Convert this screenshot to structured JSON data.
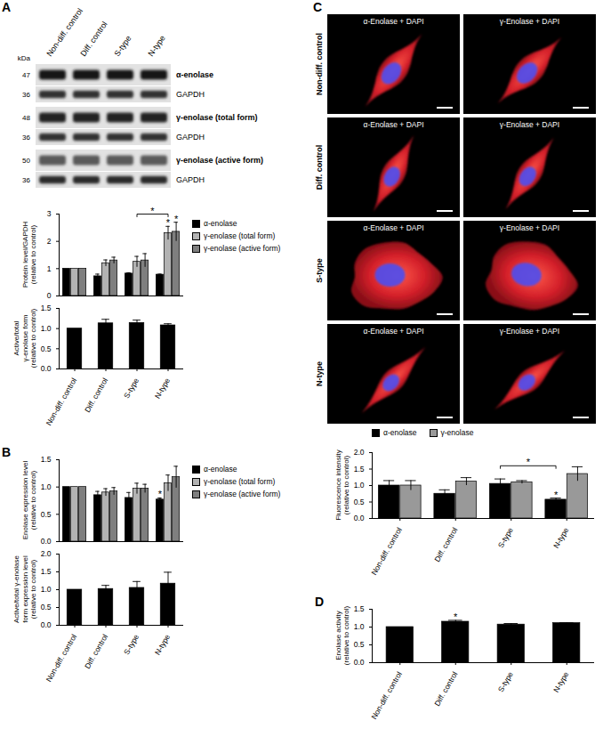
{
  "blot": {
    "panel": "A",
    "lanes": [
      "Non-diff. control",
      "Diff. control",
      "S-type",
      "N-type"
    ],
    "unit": "kDa",
    "rows": [
      {
        "kda": 47,
        "label": "α-enolase"
      },
      {
        "kda": 36,
        "label": "GAPDH"
      },
      {
        "kda": 48,
        "label": "γ-enolase (total form)"
      },
      {
        "kda": 36,
        "label": "GAPDH"
      },
      {
        "kda": 50,
        "label": "γ-enolase (active form)"
      },
      {
        "kda": 36,
        "label": "GAPDH"
      }
    ]
  },
  "images": {
    "panel": "C",
    "columns": [
      "α-Enolase + DAPI",
      "γ-Enolase + DAPI"
    ],
    "rows": [
      "Non-diff. control",
      "Diff. control",
      "S-type",
      "N-type"
    ]
  },
  "chart_data": [
    {
      "type": "bar",
      "y_label": "Protein level/GAPDH (relative to control)",
      "categories": [
        "Non-diff. control",
        "Diff. control",
        "S-type",
        "N-type"
      ],
      "series": [
        {
          "name": "α-enolase",
          "color": "#000000",
          "values": [
            1,
            0.72,
            0.82,
            0.78
          ],
          "errors": [
            0,
            0.08,
            0.03,
            0.02
          ]
        },
        {
          "name": "γ-enolase (total form)",
          "color": "#b3b3b3",
          "values": [
            1,
            1.2,
            1.25,
            2.3
          ],
          "errors": [
            0,
            0.12,
            0.2,
            0.25
          ]
        },
        {
          "name": "γ-enolase (active form)",
          "color": "#7f7f7f",
          "values": [
            1,
            1.3,
            1.3,
            2.35
          ],
          "errors": [
            0,
            0.12,
            0.25,
            0.35
          ]
        }
      ],
      "ylim": [
        0,
        3
      ],
      "yticks": [
        0,
        1,
        2,
        3
      ],
      "tick_labels": "y",
      "legend": "right",
      "annotations": [
        {
          "category": "N-type",
          "series": "γ-enolase (total form)",
          "text": "*"
        },
        {
          "category": "N-type",
          "series": "γ-enolase (active form)",
          "text": "*"
        }
      ],
      "brackets": [
        {
          "from": {
            "category": "S-type",
            "series": "γ-enolase (total form)"
          },
          "to": {
            "category": "N-type",
            "series": "γ-enolase (total form)"
          },
          "y": 3,
          "text": "*"
        }
      ]
    },
    {
      "type": "bar",
      "y_label": "Active/total γ-enolase form (relative to control)",
      "categories": [
        "Non-diff. control",
        "Diff. control",
        "S-type",
        "N-type"
      ],
      "color": "#000000",
      "values": [
        1,
        1.13,
        1.14,
        1.08
      ],
      "errors": [
        0,
        0.1,
        0.07,
        0.04
      ],
      "ylim": [
        0,
        1.5
      ],
      "yticks": [
        {
          "value": 0,
          "label": "0.0"
        },
        {
          "value": 0.5,
          "label": "0.5"
        },
        {
          "value": 1,
          "label": "1.0"
        },
        {
          "value": 1.5,
          "label": "1.5"
        }
      ]
    },
    {
      "panel": "B",
      "type": "bar",
      "y_label": "Enolase expression level (relative to control)",
      "categories": [
        "Non-diff. control",
        "Diff. control",
        "S-type",
        "N-type"
      ],
      "series": [
        {
          "name": "α-enolase",
          "color": "#000000",
          "values": [
            1,
            0.85,
            0.8,
            0.77
          ],
          "errors": [
            0,
            0.07,
            0.1,
            0.03
          ]
        },
        {
          "name": "γ-enolase (total form)",
          "color": "#b3b3b3",
          "values": [
            1,
            0.9,
            0.97,
            1.07
          ],
          "errors": [
            0,
            0.07,
            0.1,
            0.15
          ]
        },
        {
          "name": "γ-enolase (active form)",
          "color": "#7f7f7f",
          "values": [
            1,
            0.92,
            0.97,
            1.18
          ],
          "errors": [
            0,
            0.07,
            0.08,
            0.2
          ]
        }
      ],
      "ylim": [
        0,
        1.5
      ],
      "yticks": [
        {
          "value": 0,
          "label": "0.0"
        },
        {
          "value": 0.5,
          "label": "0.5"
        },
        {
          "value": 1,
          "label": "1.0"
        },
        {
          "value": 1.5,
          "label": "1.5"
        }
      ],
      "tick_labels": "y",
      "legend": "right",
      "annotations": [
        {
          "category": "N-type",
          "series": "α-enolase",
          "text": "*"
        }
      ]
    },
    {
      "type": "bar",
      "y_label": "Active/total γ-enolase form expression level (relative to control)",
      "categories": [
        "Non-diff. control",
        "Diff. control",
        "S-type",
        "N-type"
      ],
      "color": "#000000",
      "values": [
        1,
        1.02,
        1.05,
        1.17
      ],
      "errors": [
        0,
        0.1,
        0.18,
        0.32
      ],
      "ylim": [
        0,
        2
      ],
      "yticks": [
        {
          "value": 0,
          "label": "0.0"
        },
        {
          "value": 0.5,
          "label": "0.5"
        },
        {
          "value": 1,
          "label": "1.0"
        },
        {
          "value": 1.5,
          "label": "1.5"
        },
        {
          "value": 2,
          "label": "2.0"
        }
      ]
    },
    {
      "type": "bar",
      "y_label": "Fluorescence intensity (relative to control)",
      "categories": [
        "Non-diff. control",
        "Diff. control",
        "S-type",
        "N-type"
      ],
      "series": [
        {
          "name": "α-enolase",
          "color": "#000000",
          "values": [
            1,
            0.75,
            1.05,
            0.57
          ],
          "errors": [
            0.15,
            0.12,
            0.15,
            0.05
          ]
        },
        {
          "name": "γ-enolase",
          "color": "#999999",
          "values": [
            1,
            1.12,
            1.1,
            1.35
          ],
          "errors": [
            0.15,
            0.12,
            0.05,
            0.22
          ]
        }
      ],
      "ylim": [
        0,
        2
      ],
      "yticks": [
        {
          "value": 0,
          "label": "0.0"
        },
        {
          "value": 0.5,
          "label": "0.5"
        },
        {
          "value": 1,
          "label": "1.0"
        },
        {
          "value": 1.5,
          "label": "1.5"
        },
        {
          "value": 2,
          "label": "2.0"
        }
      ],
      "legend": "top",
      "annotations": [
        {
          "category": "N-type",
          "series": "α-enolase",
          "text": "*"
        }
      ],
      "brackets": [
        {
          "from": {
            "category": "S-type",
            "series": "α-enolase"
          },
          "to": {
            "category": "N-type",
            "series": "α-enolase"
          },
          "y": 1.6,
          "text": "*"
        }
      ]
    },
    {
      "panel": "D",
      "type": "bar",
      "y_label": "Enolase activity (relative to control)",
      "categories": [
        "Non-diff. control",
        "Diff. control",
        "S-type",
        "N-type"
      ],
      "color": "#000000",
      "values": [
        1,
        1.15,
        1.07,
        1.11
      ],
      "errors": [
        0,
        0.04,
        0.03,
        0.01
      ],
      "ylim": [
        0,
        1.5
      ],
      "yticks": [
        {
          "value": 0,
          "label": "0.0"
        },
        {
          "value": 0.5,
          "label": "0.5"
        },
        {
          "value": 1,
          "label": "1.0"
        },
        {
          "value": 1.5,
          "label": "1.5"
        }
      ],
      "annotations": [
        {
          "category": "Diff. control",
          "text": "*"
        }
      ]
    }
  ]
}
